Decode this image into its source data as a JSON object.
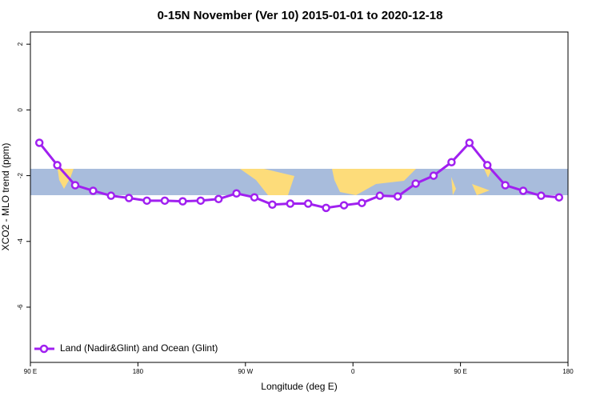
{
  "chart_data": {
    "type": "line",
    "title": "0-15N November (Ver 10)   2015-01-01 to 2020-12-18",
    "xlabel": "Longitude (deg E)",
    "ylabel": "XCO2 - MLO trend (ppm)",
    "x": [
      97.5,
      112.5,
      127.5,
      142.5,
      157.5,
      172.5,
      187.5,
      202.5,
      217.5,
      232.5,
      247.5,
      262.5,
      277.5,
      292.5,
      307.5,
      322.5,
      337.5,
      352.5,
      367.5,
      382.5,
      397.5,
      412.5,
      427.5,
      442.5,
      457.5,
      472.5,
      487.5,
      502.5,
      517.5,
      532.5
    ],
    "series": [
      {
        "name": "Land (Nadir&Glint) and Ocean (Glint)",
        "color": "#a020f0",
        "values": [
          -1.0,
          -1.68,
          -2.29,
          -2.46,
          -2.61,
          -2.68,
          -2.76,
          -2.76,
          -2.78,
          -2.76,
          -2.71,
          -2.54,
          -2.66,
          -2.88,
          -2.85,
          -2.85,
          -2.98,
          -2.9,
          -2.83,
          -2.61,
          -2.63,
          -2.24,
          -2.0,
          -1.59,
          -1.0,
          -1.68,
          -2.29,
          -2.46,
          -2.61,
          -2.66
        ]
      }
    ],
    "xlim": [
      90,
      540
    ],
    "xticks": [
      {
        "value": 90,
        "label": "90 E"
      },
      180,
      {
        "value": 270,
        "label": "90 W"
      },
      {
        "value": 360,
        "label": "0"
      },
      {
        "value": 450,
        "label": "90 E"
      },
      {
        "value": 540,
        "label": "180"
      }
    ],
    "ylim": [
      -7.68,
      2.37
    ],
    "yticks": [
      2,
      0,
      -2,
      -4,
      -6
    ],
    "legend": "bottom-left"
  }
}
